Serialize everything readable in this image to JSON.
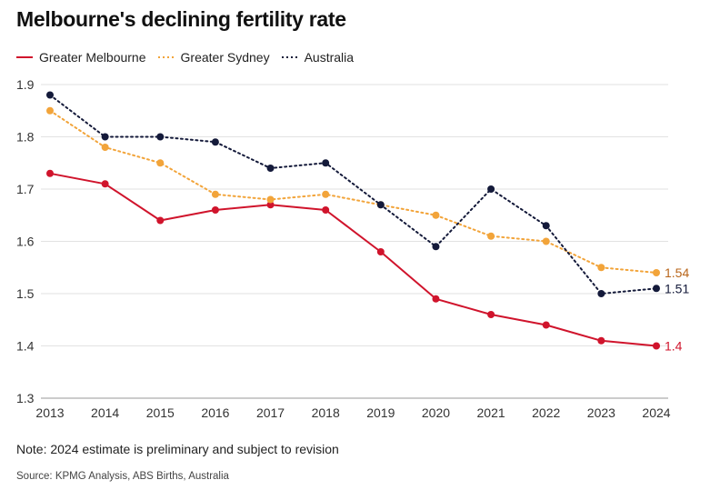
{
  "title": "Melbourne's declining fertility rate",
  "note": "Note: 2024 estimate is preliminary and subject to revision",
  "source": "Source: KPMG Analysis, ABS Births, Australia",
  "chart_data": {
    "type": "line",
    "title": "Melbourne's declining fertility rate",
    "xlabel": "",
    "ylabel": "",
    "x": [
      2013,
      2014,
      2015,
      2016,
      2017,
      2018,
      2019,
      2020,
      2021,
      2022,
      2023,
      2024
    ],
    "ylim": [
      1.3,
      1.9
    ],
    "yticks": [
      "1.3",
      "1.4",
      "1.5",
      "1.6",
      "1.7",
      "1.8",
      "1.9"
    ],
    "grid": "horizontal",
    "legend_position": "top-left",
    "series": [
      {
        "name": "Greater Melbourne",
        "color": "#d0142c",
        "style": "solid",
        "end_label": "1.4",
        "values": [
          1.73,
          1.71,
          1.64,
          1.66,
          1.67,
          1.66,
          1.58,
          1.49,
          1.46,
          1.44,
          1.41,
          1.4
        ]
      },
      {
        "name": "Greater Sydney",
        "color": "#f2a43a",
        "label_color": "#b8651a",
        "style": "dotted",
        "end_label": "1.54",
        "values": [
          1.85,
          1.78,
          1.75,
          1.69,
          1.68,
          1.69,
          1.67,
          1.65,
          1.61,
          1.6,
          1.55,
          1.54
        ]
      },
      {
        "name": "Australia",
        "color": "#141a3a",
        "style": "dotted",
        "end_label": "1.51",
        "values": [
          1.88,
          1.8,
          1.8,
          1.79,
          1.74,
          1.75,
          1.67,
          1.59,
          1.7,
          1.63,
          1.5,
          1.51
        ]
      }
    ]
  }
}
